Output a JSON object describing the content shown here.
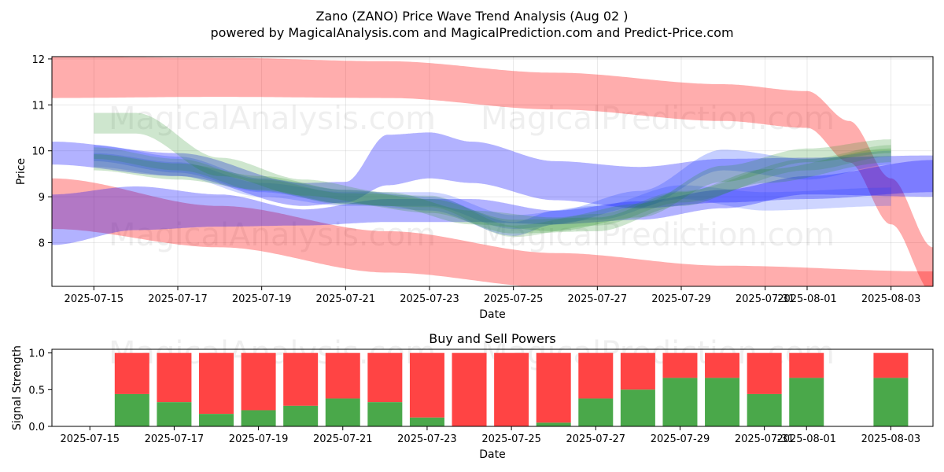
{
  "chart_data": [
    {
      "type": "area",
      "title": "Zano (ZANO) Price Wave Trend Analysis (Aug 02 )",
      "subtitle": "powered by MagicalAnalysis.com and MagicalPrediction.com and Predict-Price.com",
      "xlabel": "Date",
      "ylabel": "Price",
      "xlim": [
        "2025-07-14",
        "2025-08-04"
      ],
      "ylim": [
        7.05,
        12.05
      ],
      "yticks": [
        8,
        9,
        10,
        11,
        12
      ],
      "xticks": [
        "2025-07-15",
        "2025-07-17",
        "2025-07-19",
        "2025-07-21",
        "2025-07-23",
        "2025-07-25",
        "2025-07-27",
        "2025-07-29",
        "2025-07-31",
        "2025-08-01",
        "2025-08-03"
      ],
      "grid": true,
      "watermarks": [
        "MagicalAnalysis.com",
        "MagicalPrediction.com",
        "MagicalAnalysis.com",
        "MagicalPrediction.com"
      ],
      "bands": [
        {
          "name": "red-upper",
          "color": "#ff0000",
          "opacity": 0.32,
          "x": [
            "2025-07-14",
            "2025-07-18",
            "2025-07-22",
            "2025-07-26",
            "2025-07-30",
            "2025-08-01",
            "2025-08-02",
            "2025-08-03",
            "2025-08-04"
          ],
          "center": [
            11.6,
            11.6,
            11.55,
            11.3,
            11.05,
            10.9,
            10.2,
            8.9,
            7.4
          ],
          "width": [
            0.9,
            0.85,
            0.8,
            0.8,
            0.8,
            0.8,
            0.9,
            1.0,
            1.0
          ]
        },
        {
          "name": "red-lower",
          "color": "#ff0000",
          "opacity": 0.32,
          "x": [
            "2025-07-14",
            "2025-07-18",
            "2025-07-22",
            "2025-07-26",
            "2025-07-30",
            "2025-08-04"
          ],
          "center": [
            8.85,
            8.35,
            7.8,
            7.4,
            7.2,
            7.1
          ],
          "width": [
            1.1,
            0.9,
            0.9,
            0.75,
            0.6,
            0.55
          ]
        },
        {
          "name": "blue-upper",
          "color": "#0000ff",
          "opacity": 0.3,
          "x": [
            "2025-07-14",
            "2025-07-17",
            "2025-07-20",
            "2025-07-21",
            "2025-07-22",
            "2025-07-23",
            "2025-07-24",
            "2025-07-26",
            "2025-07-28",
            "2025-07-30",
            "2025-08-01",
            "2025-08-04"
          ],
          "center": [
            9.95,
            9.7,
            9.05,
            9.1,
            9.8,
            9.9,
            9.75,
            9.35,
            9.2,
            9.35,
            9.4,
            9.5
          ],
          "width": [
            0.5,
            0.5,
            0.5,
            0.45,
            1.1,
            1.0,
            0.9,
            0.85,
            0.9,
            0.95,
            0.9,
            0.8
          ]
        },
        {
          "name": "blue-purple",
          "color": "#0000ff",
          "opacity": 0.3,
          "x": [
            "2025-07-14",
            "2025-07-16",
            "2025-07-18",
            "2025-07-20",
            "2025-07-22",
            "2025-07-24",
            "2025-07-26",
            "2025-07-28",
            "2025-07-30",
            "2025-08-01",
            "2025-08-04"
          ],
          "center": [
            8.5,
            8.75,
            8.7,
            8.55,
            8.7,
            8.7,
            8.55,
            8.7,
            8.95,
            9.25,
            9.4
          ],
          "width": [
            1.1,
            0.95,
            0.7,
            0.35,
            0.5,
            0.5,
            0.3,
            0.4,
            0.4,
            0.4,
            0.8
          ]
        },
        {
          "name": "blue-mid",
          "color": "#2040ff",
          "opacity": 0.26,
          "x": [
            "2025-07-15",
            "2025-07-17",
            "2025-07-19",
            "2025-07-21",
            "2025-07-23",
            "2025-07-25",
            "2025-07-26",
            "2025-07-28",
            "2025-07-30",
            "2025-08-01",
            "2025-08-03"
          ],
          "center": [
            9.95,
            9.7,
            9.25,
            9.0,
            8.85,
            8.3,
            8.55,
            8.95,
            9.8,
            9.6,
            9.85
          ],
          "width": [
            0.35,
            0.35,
            0.3,
            0.3,
            0.3,
            0.3,
            0.3,
            0.35,
            0.45,
            0.45,
            0.3
          ]
        },
        {
          "name": "blue-low",
          "color": "#2040ff",
          "opacity": 0.22,
          "x": [
            "2025-07-15",
            "2025-07-17",
            "2025-07-19",
            "2025-07-21",
            "2025-07-23",
            "2025-07-25",
            "2025-07-27",
            "2025-07-29",
            "2025-07-31",
            "2025-08-03"
          ],
          "center": [
            9.8,
            9.6,
            9.15,
            8.95,
            8.95,
            8.45,
            8.65,
            9.1,
            8.9,
            9.0
          ],
          "width": [
            0.3,
            0.3,
            0.3,
            0.3,
            0.3,
            0.3,
            0.3,
            0.3,
            0.4,
            0.4
          ]
        },
        {
          "name": "green-upper",
          "color": "#228b22",
          "opacity": 0.22,
          "x": [
            "2025-07-15",
            "2025-07-16",
            "2025-07-18",
            "2025-07-20",
            "2025-07-22",
            "2025-07-24",
            "2025-07-26",
            "2025-07-28",
            "2025-07-30",
            "2025-08-01",
            "2025-08-03"
          ],
          "center": [
            10.6,
            10.6,
            9.65,
            9.2,
            8.95,
            8.55,
            8.4,
            8.7,
            9.5,
            9.9,
            10.1
          ],
          "width": [
            0.45,
            0.45,
            0.4,
            0.35,
            0.3,
            0.3,
            0.3,
            0.3,
            0.35,
            0.3,
            0.3
          ]
        },
        {
          "name": "green-lower",
          "color": "#228b22",
          "opacity": 0.22,
          "x": [
            "2025-07-15",
            "2025-07-17",
            "2025-07-19",
            "2025-07-21",
            "2025-07-23",
            "2025-07-25",
            "2025-07-27",
            "2025-07-29",
            "2025-07-31",
            "2025-08-03"
          ],
          "center": [
            9.75,
            9.55,
            9.3,
            9.0,
            8.8,
            8.35,
            8.4,
            8.95,
            9.45,
            9.9
          ],
          "width": [
            0.35,
            0.35,
            0.3,
            0.3,
            0.3,
            0.3,
            0.3,
            0.3,
            0.3,
            0.3
          ]
        },
        {
          "name": "green-mid",
          "color": "#228b22",
          "opacity": 0.18,
          "x": [
            "2025-07-15",
            "2025-07-17",
            "2025-07-19",
            "2025-07-21",
            "2025-07-23",
            "2025-07-25",
            "2025-07-27",
            "2025-07-29",
            "2025-08-01",
            "2025-08-03"
          ],
          "center": [
            9.95,
            9.7,
            9.25,
            8.95,
            8.9,
            8.25,
            8.5,
            9.0,
            9.7,
            10.0
          ],
          "width": [
            0.25,
            0.25,
            0.25,
            0.25,
            0.25,
            0.25,
            0.25,
            0.25,
            0.25,
            0.25
          ]
        }
      ]
    },
    {
      "type": "bar",
      "title": "Buy and Sell Powers",
      "xlabel": "Date",
      "ylabel": "Signal Strength",
      "xlim": [
        "2025-07-14",
        "2025-08-04"
      ],
      "ylim": [
        0,
        1.05
      ],
      "yticks": [
        "0.0",
        "0.5",
        "1.0"
      ],
      "xticks": [
        "2025-07-15",
        "2025-07-17",
        "2025-07-19",
        "2025-07-21",
        "2025-07-23",
        "2025-07-25",
        "2025-07-27",
        "2025-07-29",
        "2025-07-31",
        "2025-08-01",
        "2025-08-03"
      ],
      "watermarks": [
        "MagicalAnalysis.com",
        "MagicalPrediction.com"
      ],
      "colors": {
        "buy": "#4aa84a",
        "sell": "#ff4444"
      },
      "categories": [
        "2025-07-16",
        "2025-07-17",
        "2025-07-18",
        "2025-07-19",
        "2025-07-20",
        "2025-07-21",
        "2025-07-22",
        "2025-07-23",
        "2025-07-24",
        "2025-07-25",
        "2025-07-26",
        "2025-07-27",
        "2025-07-28",
        "2025-07-29",
        "2025-07-30",
        "2025-07-31",
        "2025-08-01",
        "2025-08-03"
      ],
      "series": [
        {
          "name": "Buy",
          "values": [
            0.44,
            0.33,
            0.17,
            0.22,
            0.28,
            0.38,
            0.33,
            0.12,
            0.0,
            0.0,
            0.05,
            0.38,
            0.5,
            0.66,
            0.66,
            0.44,
            0.66,
            0.66
          ]
        },
        {
          "name": "Sell",
          "values": [
            0.56,
            0.67,
            0.83,
            0.78,
            0.72,
            0.62,
            0.67,
            0.88,
            1.0,
            1.0,
            0.95,
            0.62,
            0.5,
            0.34,
            0.34,
            0.56,
            0.34,
            0.34
          ]
        }
      ]
    }
  ]
}
